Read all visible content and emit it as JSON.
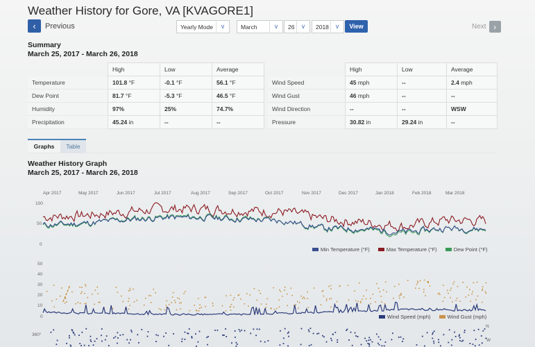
{
  "page": {
    "title": "Weather History for Gore, VA [KVAGORE1]",
    "prev_label": "Previous",
    "next_label": "Next"
  },
  "controls": {
    "mode": "Yearly Mode",
    "month": "March",
    "day": "26",
    "year": "2018",
    "view_label": "View"
  },
  "summary": {
    "heading": "Summary",
    "range": "March 25, 2017 - March 26, 2018",
    "left_table": {
      "headers": [
        "",
        "High",
        "Low",
        "Average"
      ],
      "rows": [
        {
          "label": "Temperature",
          "high": "101.8",
          "high_unit": "°F",
          "low": "-0.1",
          "low_unit": "°F",
          "avg": "56.1",
          "avg_unit": "°F"
        },
        {
          "label": "Dew Point",
          "high": "81.7",
          "high_unit": "°F",
          "low": "-5.3",
          "low_unit": "°F",
          "avg": "46.5",
          "avg_unit": "°F"
        },
        {
          "label": "Humidity",
          "high": "97%",
          "high_unit": "",
          "low": "25%",
          "low_unit": "",
          "avg": "74.7%",
          "avg_unit": ""
        },
        {
          "label": "Precipitation",
          "high": "45.24",
          "high_unit": "in",
          "low": "--",
          "low_unit": "",
          "avg": "--",
          "avg_unit": ""
        }
      ]
    },
    "right_table": {
      "headers": [
        "",
        "High",
        "Low",
        "Average"
      ],
      "rows": [
        {
          "label": "Wind Speed",
          "high": "45",
          "high_unit": "mph",
          "low": "--",
          "low_unit": "",
          "avg": "2.4",
          "avg_unit": "mph"
        },
        {
          "label": "Wind Gust",
          "high": "46",
          "high_unit": "mph",
          "low": "--",
          "low_unit": "",
          "avg": "--",
          "avg_unit": ""
        },
        {
          "label": "Wind Direction",
          "high": "--",
          "high_unit": "",
          "low": "--",
          "low_unit": "",
          "avg": "WSW",
          "avg_unit": ""
        },
        {
          "label": "Pressure",
          "high": "30.82",
          "high_unit": "in",
          "low": "29.24",
          "low_unit": "in",
          "avg": "--",
          "avg_unit": ""
        }
      ]
    }
  },
  "tabs": [
    {
      "label": "Graphs",
      "active": true
    },
    {
      "label": "Table",
      "active": false
    }
  ],
  "graph": {
    "heading": "Weather History Graph",
    "range": "March 25, 2017 - March 26, 2018"
  },
  "colors": {
    "min_temp": "#3a4f8f",
    "max_temp": "#8b1c24",
    "dew_point": "#3a9a58",
    "wind_speed": "#2b3a7a",
    "wind_gust": "#c8944a",
    "accent": "#2f62ad"
  },
  "chart_data": [
    {
      "type": "line",
      "title": "Temperature",
      "x_ticks": [
        "Apr 2017",
        "May 2017",
        "Jun 2017",
        "Jul 2017",
        "Aug 2017",
        "Sep 2017",
        "Oct 2017",
        "Nov 2017",
        "Dec 2017",
        "Jan 2018",
        "Feb 2018",
        "Mar 2018"
      ],
      "y_ticks": [
        0,
        50,
        100
      ],
      "ylim": [
        0,
        100
      ],
      "series": [
        {
          "name": "Min Temperature (°F)",
          "monthly_approx": [
            48,
            52,
            60,
            66,
            66,
            62,
            58,
            40,
            38,
            30,
            40,
            38
          ]
        },
        {
          "name": "Max Temperature (°F)",
          "monthly_approx": [
            68,
            72,
            80,
            88,
            88,
            84,
            80,
            62,
            54,
            45,
            60,
            58
          ]
        },
        {
          "name": "Dew Point (°F)",
          "monthly_approx": [
            46,
            50,
            62,
            68,
            68,
            64,
            58,
            38,
            36,
            26,
            40,
            36
          ]
        }
      ],
      "legend_position": "bottom-right"
    },
    {
      "type": "line",
      "title": "Wind",
      "y_ticks": [
        0,
        10,
        20,
        30,
        40,
        50
      ],
      "ylim": [
        0,
        50
      ],
      "series": [
        {
          "name": "Wind Speed (mph)",
          "style": "line",
          "monthly_approx": [
            4,
            3,
            3,
            2,
            2,
            2,
            3,
            4,
            5,
            7,
            6,
            6
          ]
        },
        {
          "name": "Wind Gust (mph)",
          "style": "scatter",
          "monthly_approx": [
            20,
            22,
            18,
            15,
            14,
            17,
            18,
            20,
            22,
            25,
            24,
            22
          ]
        }
      ],
      "legend_position": "bottom-right"
    },
    {
      "type": "scatter",
      "title": "Wind Direction",
      "y_ticks": [
        "360°"
      ],
      "right_labels": [
        "N",
        "W"
      ]
    }
  ],
  "legends": {
    "temp": [
      "Min Temperature (°F)",
      "Max Temperature (°F)",
      "Dew Point (°F)"
    ],
    "wind": [
      "Wind Speed (mph)",
      "Wind Gust (mph)"
    ]
  },
  "axis": {
    "temp_y": [
      "100",
      "50",
      "0"
    ],
    "wind_y": [
      "50",
      "40",
      "30",
      "20",
      "10",
      "0"
    ],
    "dir_y": "360°",
    "dir_right": [
      "N",
      "W"
    ]
  }
}
